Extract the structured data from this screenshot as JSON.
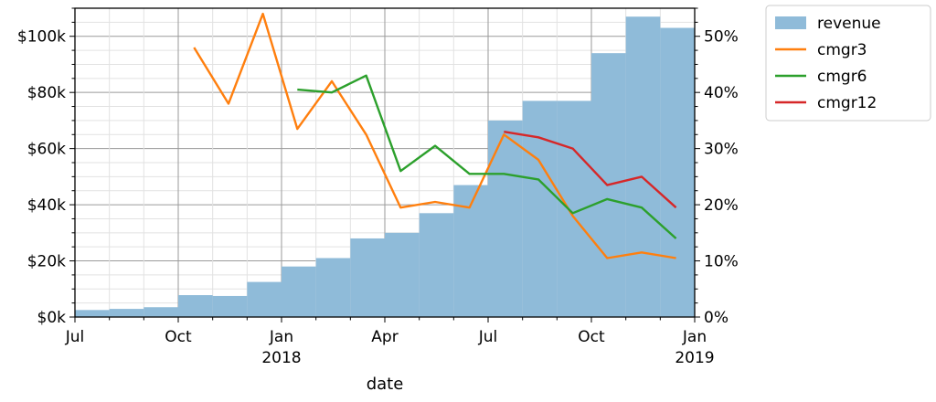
{
  "chart_data": {
    "type": "bar+line",
    "xlabel": "date",
    "x_ticks": [
      {
        "date": "2017-07",
        "label": "Jul",
        "sub": ""
      },
      {
        "date": "2017-10",
        "label": "Oct",
        "sub": ""
      },
      {
        "date": "2018-01",
        "label": "Jan",
        "sub": "2018"
      },
      {
        "date": "2018-04",
        "label": "Apr",
        "sub": ""
      },
      {
        "date": "2018-07",
        "label": "Jul",
        "sub": ""
      },
      {
        "date": "2018-10",
        "label": "Oct",
        "sub": ""
      },
      {
        "date": "2019-01",
        "label": "Jan",
        "sub": "2019"
      }
    ],
    "xlim": [
      "2017-07",
      "2019-01"
    ],
    "y_left": {
      "lim": [
        0,
        110000
      ],
      "ticks": [
        {
          "value": 0,
          "label": "$0k"
        },
        {
          "value": 20000,
          "label": "$20k"
        },
        {
          "value": 40000,
          "label": "$40k"
        },
        {
          "value": 60000,
          "label": "$60k"
        },
        {
          "value": 80000,
          "label": "$80k"
        },
        {
          "value": 100000,
          "label": "$100k"
        }
      ]
    },
    "y_right": {
      "lim": [
        0,
        55
      ],
      "ticks": [
        {
          "value": 0,
          "label": "0%"
        },
        {
          "value": 10,
          "label": "10%"
        },
        {
          "value": 20,
          "label": "20%"
        },
        {
          "value": 30,
          "label": "30%"
        },
        {
          "value": 40,
          "label": "40%"
        },
        {
          "value": 50,
          "label": "50%"
        }
      ]
    },
    "grid": true,
    "legend_position": "outside-top-right",
    "bars": {
      "name": "revenue",
      "color": "#8fbbd9",
      "months": [
        "2017-07",
        "2017-08",
        "2017-09",
        "2017-10",
        "2017-11",
        "2017-12",
        "2018-01",
        "2018-02",
        "2018-03",
        "2018-04",
        "2018-05",
        "2018-06",
        "2018-07",
        "2018-08",
        "2018-09",
        "2018-10",
        "2018-11",
        "2018-12"
      ],
      "values": [
        2500,
        2900,
        3500,
        7800,
        7500,
        12500,
        18000,
        21000,
        28000,
        30000,
        37000,
        47000,
        70000,
        77000,
        77000,
        94000,
        107000,
        103000
      ]
    },
    "series": [
      {
        "name": "cmgr3",
        "color": "#ff7f0e",
        "x": [
          "2017-10-15",
          "2017-11-15",
          "2017-12-15",
          "2018-01-15",
          "2018-02-15",
          "2018-03-15",
          "2018-04-15",
          "2018-05-15",
          "2018-06-15",
          "2018-07-15",
          "2018-08-15",
          "2018-09-15",
          "2018-10-15",
          "2018-11-15",
          "2018-12-15"
        ],
        "values": [
          48,
          38,
          54,
          33.5,
          42,
          32.5,
          19.5,
          20.5,
          19.5,
          32.5,
          28,
          18,
          10.5,
          11.5,
          10.5
        ]
      },
      {
        "name": "cmgr6",
        "color": "#2ca02c",
        "x": [
          "2018-01-15",
          "2018-02-15",
          "2018-03-15",
          "2018-04-15",
          "2018-05-15",
          "2018-06-15",
          "2018-07-15",
          "2018-08-15",
          "2018-09-15",
          "2018-10-15",
          "2018-11-15",
          "2018-12-15"
        ],
        "values": [
          40.5,
          40,
          43,
          26,
          30.5,
          25.5,
          25.5,
          24.5,
          18.5,
          21,
          19.5,
          14
        ]
      },
      {
        "name": "cmgr12",
        "color": "#d62728",
        "x": [
          "2018-07-15",
          "2018-08-15",
          "2018-09-15",
          "2018-10-15",
          "2018-11-15",
          "2018-12-15"
        ],
        "values": [
          33,
          32,
          30,
          23.5,
          25,
          19.5
        ]
      }
    ]
  }
}
